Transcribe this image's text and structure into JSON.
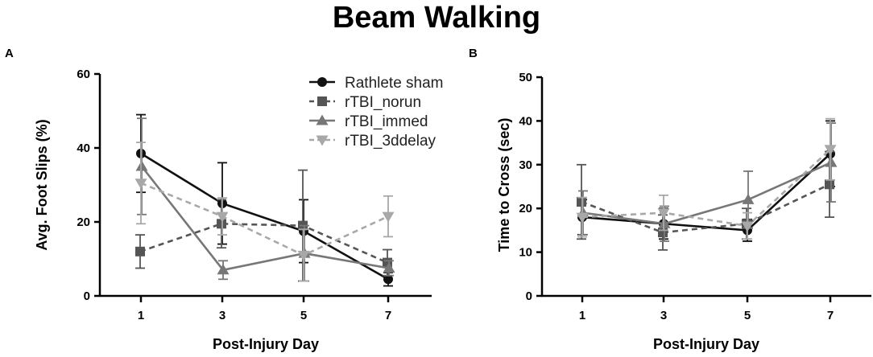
{
  "figure_title": "Beam Walking",
  "colors": {
    "sham": "#111111",
    "norun": "#555555",
    "immed": "#777777",
    "delay": "#a8a8a8"
  },
  "chart_data": [
    {
      "panel": "A",
      "type": "line",
      "xlabel": "Post-Injury Day",
      "ylabel": "Avg. Foot Slips (%)",
      "x": [
        1,
        3,
        5,
        7
      ],
      "xticks": [
        "1",
        "3",
        "5",
        "7"
      ],
      "ylim": [
        0,
        60
      ],
      "yticks": [
        "0",
        "20",
        "40",
        "60"
      ],
      "legend": "top-right",
      "series": [
        {
          "name": "Rathlete sham",
          "marker": "circle",
          "dash": "solid",
          "values": [
            38.5,
            25,
            17.5,
            4.5
          ],
          "errors": [
            10.5,
            11,
            8.5,
            1.8
          ]
        },
        {
          "name": "rTBI_norun",
          "marker": "square",
          "dash": "dashed",
          "values": [
            12,
            19.5,
            19,
            9
          ],
          "errors": [
            4.5,
            6.5,
            15,
            3.5
          ]
        },
        {
          "name": "rTBI_immed",
          "marker": "triangle-up",
          "dash": "solid",
          "values": [
            35,
            7,
            11.5,
            7.5
          ],
          "errors": [
            13,
            2.5,
            7.5,
            2
          ]
        },
        {
          "name": "rTBI_3ddelay",
          "marker": "triangle-down",
          "dash": "dashed",
          "values": [
            30.5,
            21.5,
            11,
            21.5
          ],
          "errors": [
            11,
            5,
            7,
            5.5
          ]
        }
      ]
    },
    {
      "panel": "B",
      "type": "line",
      "xlabel": "Post-Injury Day",
      "ylabel": "Time to Cross  (sec)",
      "x": [
        1,
        3,
        5,
        7
      ],
      "xticks": [
        "1",
        "3",
        "5",
        "7"
      ],
      "ylim": [
        0,
        50
      ],
      "yticks": [
        "0",
        "10",
        "20",
        "30",
        "40",
        "50"
      ],
      "series": [
        {
          "name": "Rathlete sham",
          "marker": "circle",
          "dash": "solid",
          "values": [
            18,
            16.5,
            15,
            32.5
          ],
          "errors": [
            4,
            3.5,
            2.5,
            7.5
          ]
        },
        {
          "name": "rTBI_norun",
          "marker": "square",
          "dash": "dashed",
          "values": [
            21.5,
            14.5,
            16.5,
            25.5
          ],
          "errors": [
            8.5,
            4,
            3.5,
            7.5
          ]
        },
        {
          "name": "rTBI_immed",
          "marker": "triangle-up",
          "dash": "solid",
          "values": [
            19,
            16.5,
            22,
            30.5
          ],
          "errors": [
            5,
            4,
            6.5,
            9
          ]
        },
        {
          "name": "rTBI_3ddelay",
          "marker": "triangle-down",
          "dash": "dashed",
          "values": [
            18,
            19,
            16,
            33.5
          ],
          "errors": [
            4.5,
            4,
            3,
            7
          ]
        }
      ]
    }
  ]
}
